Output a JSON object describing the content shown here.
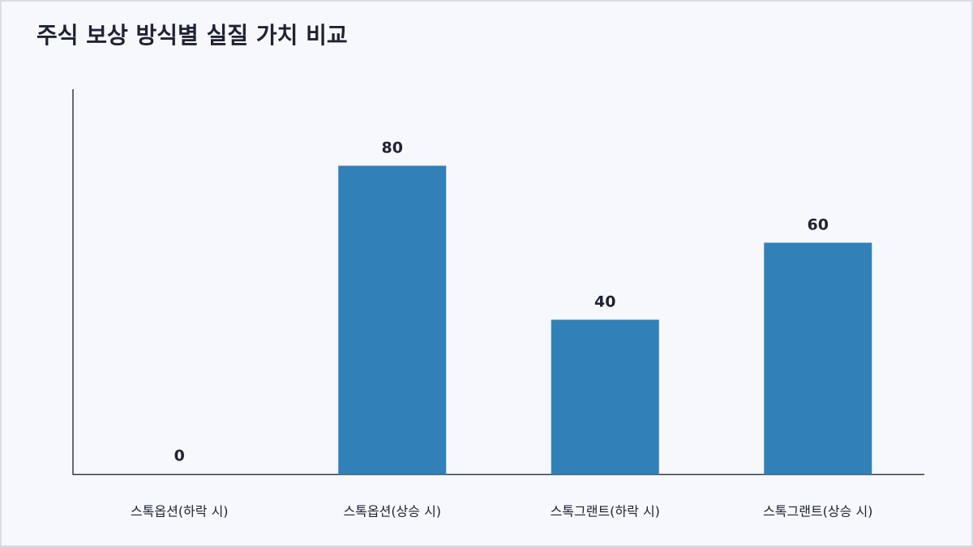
{
  "chart_data": {
    "type": "bar",
    "title": "주식 보상 방식별 실질 가치 비교",
    "categories": [
      "스톡옵션(하락 시)",
      "스톡옵션(상승 시)",
      "스톡그랜트(하락 시)",
      "스톡그랜트(상승 시)"
    ],
    "values": [
      0,
      80,
      40,
      60
    ],
    "color": "#3180b8",
    "ylim": [
      0,
      100
    ],
    "grid": false,
    "data_labels": true
  }
}
